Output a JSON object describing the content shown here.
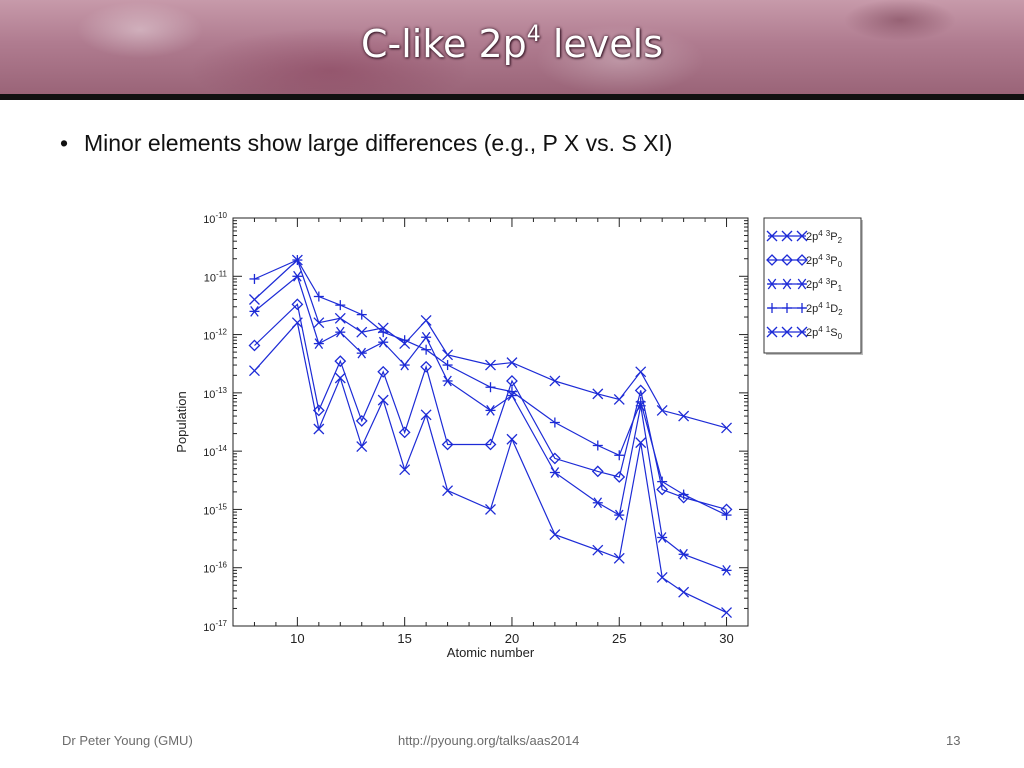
{
  "slide": {
    "title_main": "C-like 2p",
    "title_sup": "4",
    "title_tail": " levels",
    "bullet": "Minor elements show large differences (e.g., P X vs. S XI)",
    "footer_left": "Dr Peter Young (GMU)",
    "footer_center": "http://pyoung.org/talks/aas2014",
    "footer_right": "13"
  },
  "colors": {
    "series": "#1d2bd6",
    "banner": "#b07c90"
  },
  "chart_data": {
    "type": "line",
    "xlabel": "Atomic number",
    "ylabel": "Population",
    "xlim": [
      7,
      31
    ],
    "ylim": [
      1e-17,
      1e-10
    ],
    "yscale": "log",
    "xticks": [
      10,
      15,
      20,
      25,
      30
    ],
    "ytick_mantissa": "10",
    "ytick_exponents": [
      "-10",
      "-11",
      "-12",
      "-13",
      "-14",
      "-15",
      "-16",
      "-17"
    ],
    "ytick_values": [
      1e-10,
      1e-11,
      1e-12,
      1e-13,
      1e-14,
      1e-15,
      1e-16,
      1e-17
    ],
    "grid": false,
    "legend_position": "right, outside plot",
    "series": [
      {
        "label_parts": [
          "2p",
          "4",
          " ",
          "3",
          "P",
          "2"
        ],
        "marker": "x",
        "x": [
          8,
          10,
          11,
          12,
          13,
          14,
          15,
          16,
          17,
          19,
          20,
          22,
          24,
          25,
          26,
          27,
          28,
          30
        ],
        "y": [
          4e-12,
          1.9e-11,
          1.6e-12,
          1.9e-12,
          1.1e-12,
          1.3e-12,
          7e-13,
          1.75e-12,
          4.5e-13,
          3e-13,
          3.3e-13,
          1.6e-13,
          9.6e-14,
          7.7e-14,
          2.3e-13,
          5e-14,
          4e-14,
          2.5e-14
        ]
      },
      {
        "label_parts": [
          "2p",
          "4",
          " ",
          "3",
          "P",
          "0"
        ],
        "marker": "diamond",
        "x": [
          8,
          10,
          11,
          12,
          13,
          14,
          15,
          16,
          17,
          19,
          20,
          22,
          24,
          25,
          26,
          27,
          28,
          30
        ],
        "y": [
          6.5e-13,
          3.3e-12,
          5e-14,
          3.5e-13,
          3.3e-14,
          2.3e-13,
          2.1e-14,
          2.8e-13,
          1.3e-14,
          1.3e-14,
          1.6e-13,
          7.5e-15,
          4.5e-15,
          3.6e-15,
          1.1e-13,
          2.2e-15,
          1.6e-15,
          1e-15
        ]
      },
      {
        "label_parts": [
          "2p",
          "4",
          " ",
          "3",
          "P",
          "1"
        ],
        "marker": "asterisk",
        "x": [
          8,
          10,
          11,
          12,
          13,
          14,
          15,
          16,
          17,
          19,
          20,
          22,
          24,
          25,
          26,
          27,
          28,
          30
        ],
        "y": [
          2.5e-12,
          1e-11,
          7e-13,
          1.1e-12,
          4.8e-13,
          7.4e-13,
          3e-13,
          9e-13,
          1.6e-13,
          5e-14,
          9e-14,
          4.3e-15,
          1.3e-15,
          8e-16,
          6e-14,
          3.3e-16,
          1.7e-16,
          9e-17
        ]
      },
      {
        "label_parts": [
          "2p",
          "4",
          " ",
          "1",
          "D",
          "2"
        ],
        "marker": "plus",
        "x": [
          8,
          10,
          11,
          12,
          13,
          14,
          15,
          16,
          17,
          19,
          20,
          22,
          24,
          25,
          26,
          27,
          28,
          30
        ],
        "y": [
          9e-12,
          1.9e-11,
          4.5e-12,
          3.2e-12,
          2.2e-12,
          1.1e-12,
          8e-13,
          5.5e-13,
          3e-13,
          1.25e-13,
          1.05e-13,
          3.1e-14,
          1.25e-14,
          8.5e-15,
          7e-14,
          3e-15,
          1.8e-15,
          8e-16
        ]
      },
      {
        "label_parts": [
          "2p",
          "4",
          " ",
          "1",
          "S",
          "0"
        ],
        "marker": "x",
        "x": [
          8,
          10,
          11,
          12,
          13,
          14,
          15,
          16,
          17,
          19,
          20,
          22,
          24,
          25,
          26,
          27,
          28,
          30
        ],
        "y": [
          2.4e-13,
          1.6e-12,
          2.4e-14,
          1.8e-13,
          1.2e-14,
          7.5e-14,
          4.8e-15,
          4.2e-14,
          2.1e-15,
          1e-15,
          1.6e-14,
          3.7e-16,
          2e-16,
          1.45e-16,
          1.4e-14,
          6.8e-17,
          3.8e-17,
          1.7e-17
        ]
      }
    ]
  }
}
